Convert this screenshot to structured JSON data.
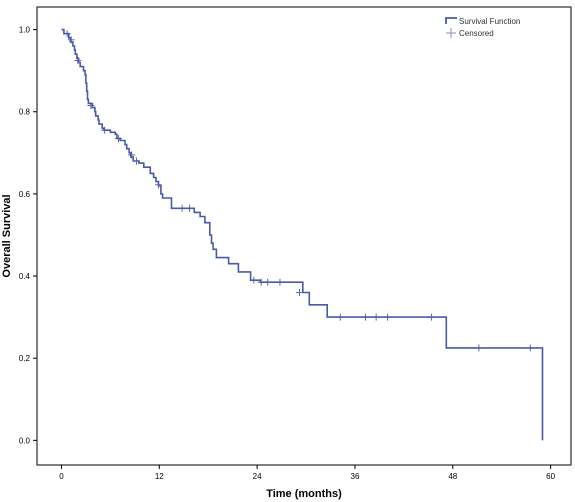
{
  "chart_data": {
    "type": "line",
    "title": "",
    "xlabel": "Time (months)",
    "ylabel": "Overall Survival",
    "xlim": [
      -3,
      62.5
    ],
    "ylim": [
      -0.06,
      1.055
    ],
    "xticks": [
      0,
      12,
      24,
      36,
      48,
      60
    ],
    "yticks": [
      0.0,
      0.2,
      0.4,
      0.6,
      0.8,
      1.0
    ],
    "xtick_labels": [
      "0",
      "12",
      "24",
      "36",
      "48",
      "60"
    ],
    "ytick_labels": [
      "0.0",
      "0.2",
      "0.4",
      "0.6",
      "0.8",
      "1.0"
    ],
    "grid": false,
    "legend_position": "top-right",
    "colors": {
      "series": "#4a5aa8",
      "axis": "#000000"
    },
    "legend": [
      {
        "label": "Survival Function",
        "marker": "step-line"
      },
      {
        "label": "Censored",
        "marker": "plus"
      }
    ],
    "series": [
      {
        "name": "Survival Function",
        "steps": [
          [
            0,
            1.0
          ],
          [
            0.3,
            0.99
          ],
          [
            0.9,
            0.98
          ],
          [
            1.1,
            0.97
          ],
          [
            1.4,
            0.96
          ],
          [
            1.6,
            0.95
          ],
          [
            1.7,
            0.94
          ],
          [
            1.9,
            0.93
          ],
          [
            2.1,
            0.92
          ],
          [
            2.3,
            0.91
          ],
          [
            2.7,
            0.9
          ],
          [
            2.9,
            0.89
          ],
          [
            3.0,
            0.87
          ],
          [
            3.1,
            0.85
          ],
          [
            3.2,
            0.83
          ],
          [
            3.3,
            0.82
          ],
          [
            3.8,
            0.81
          ],
          [
            4.1,
            0.8
          ],
          [
            4.2,
            0.79
          ],
          [
            4.5,
            0.78
          ],
          [
            4.6,
            0.77
          ],
          [
            5.0,
            0.76
          ],
          [
            5.2,
            0.755
          ],
          [
            6.0,
            0.75
          ],
          [
            6.6,
            0.745
          ],
          [
            6.8,
            0.735
          ],
          [
            7.2,
            0.73
          ],
          [
            7.8,
            0.72
          ],
          [
            8.0,
            0.71
          ],
          [
            8.3,
            0.7
          ],
          [
            8.5,
            0.69
          ],
          [
            8.8,
            0.68
          ],
          [
            9.5,
            0.675
          ],
          [
            10.1,
            0.665
          ],
          [
            10.9,
            0.65
          ],
          [
            11.3,
            0.64
          ],
          [
            11.6,
            0.63
          ],
          [
            11.9,
            0.62
          ],
          [
            12.2,
            0.6
          ],
          [
            12.4,
            0.59
          ],
          [
            13.5,
            0.565
          ],
          [
            16.3,
            0.555
          ],
          [
            17.0,
            0.545
          ],
          [
            17.6,
            0.53
          ],
          [
            18.2,
            0.5
          ],
          [
            18.4,
            0.48
          ],
          [
            18.6,
            0.465
          ],
          [
            19.0,
            0.445
          ],
          [
            20.5,
            0.43
          ],
          [
            21.7,
            0.41
          ],
          [
            23.2,
            0.39
          ],
          [
            24.4,
            0.385
          ],
          [
            29.6,
            0.36
          ],
          [
            30.4,
            0.33
          ],
          [
            32.6,
            0.3
          ],
          [
            47.2,
            0.225
          ],
          [
            59.0,
            0.0
          ]
        ],
        "end_x": 59.0
      },
      {
        "name": "Censored",
        "points": [
          [
            0.7,
            0.99
          ],
          [
            1.2,
            0.975
          ],
          [
            2.0,
            0.925
          ],
          [
            3.6,
            0.815
          ],
          [
            5.3,
            0.755
          ],
          [
            7.0,
            0.735
          ],
          [
            8.6,
            0.695
          ],
          [
            9.2,
            0.68
          ],
          [
            11.9,
            0.622
          ],
          [
            14.8,
            0.565
          ],
          [
            15.7,
            0.565
          ],
          [
            23.6,
            0.39
          ],
          [
            24.5,
            0.385
          ],
          [
            25.3,
            0.385
          ],
          [
            26.8,
            0.385
          ],
          [
            29.2,
            0.36
          ],
          [
            34.2,
            0.3
          ],
          [
            37.3,
            0.3
          ],
          [
            38.6,
            0.3
          ],
          [
            40.0,
            0.3
          ],
          [
            45.4,
            0.3
          ],
          [
            51.2,
            0.225
          ],
          [
            57.5,
            0.225
          ]
        ]
      }
    ]
  }
}
